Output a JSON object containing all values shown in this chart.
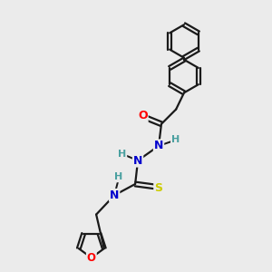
{
  "bg_color": "#ebebeb",
  "bond_color": "#1a1a1a",
  "atom_colors": {
    "O": "#ff0000",
    "N": "#0000cd",
    "S": "#cccc00",
    "H": "#4aa0a0",
    "C": "#1a1a1a"
  },
  "line_width": 1.6,
  "font_size": 8.5,
  "figsize": [
    3.0,
    3.0
  ],
  "dpi": 100
}
